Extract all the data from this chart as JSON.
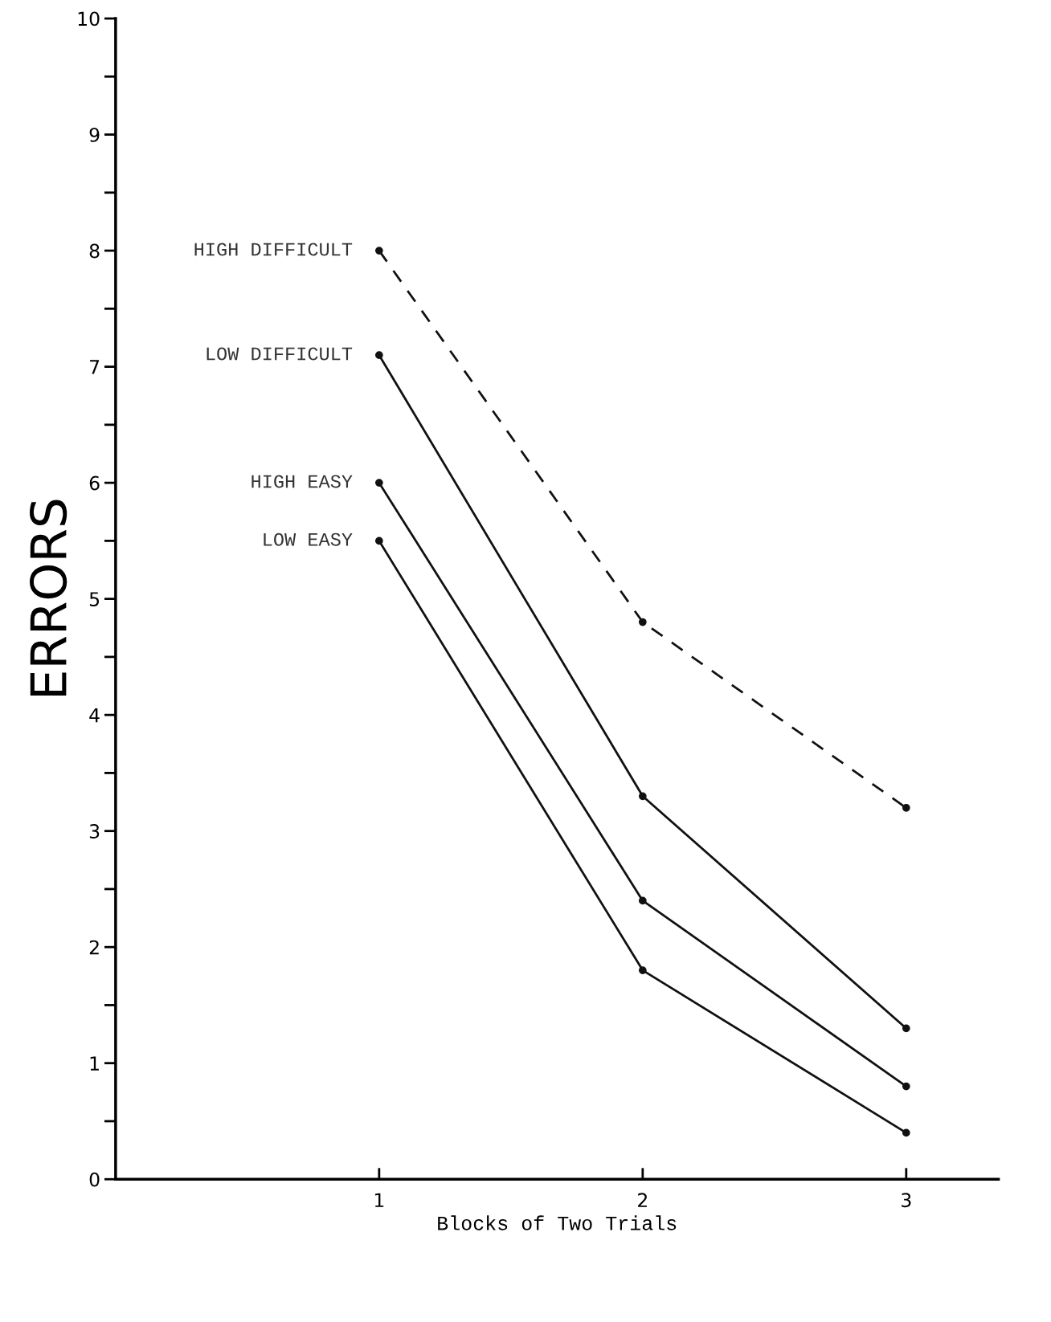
{
  "chart_data": {
    "type": "line",
    "xlabel": "Blocks of Two Trials",
    "ylabel": "ERRORS",
    "x": [
      1,
      2,
      3
    ],
    "series": [
      {
        "name": "HIGH DIFFICULT",
        "color": "#111111",
        "values": [
          8.0,
          4.8,
          3.2
        ],
        "line_style": "dashed"
      },
      {
        "name": "LOW DIFFICULT",
        "color": "#111111",
        "values": [
          7.1,
          3.3,
          1.3
        ],
        "line_style": "solid"
      },
      {
        "name": "HIGH EASY",
        "color": "#111111",
        "values": [
          6.0,
          2.4,
          0.8
        ],
        "line_style": "solid"
      },
      {
        "name": "LOW EASY",
        "color": "#111111",
        "values": [
          5.5,
          1.8,
          0.4
        ],
        "line_style": "solid"
      }
    ],
    "xlim": [
      0,
      3.35
    ],
    "xticks": [
      1,
      2,
      3
    ],
    "ylim": [
      0,
      10
    ],
    "yticks": [
      0,
      {
        "value": 0.5,
        "label": null
      },
      1,
      {
        "value": 1.5,
        "label": null
      },
      2,
      {
        "value": 2.5,
        "label": null
      },
      3,
      {
        "value": 3.5,
        "label": null
      },
      4,
      {
        "value": 4.5,
        "label": null
      },
      5,
      {
        "value": 5.5,
        "label": null
      },
      6,
      {
        "value": 6.5,
        "label": null
      },
      7,
      {
        "value": 7.5,
        "label": null
      },
      8,
      {
        "value": 8.5,
        "label": null
      },
      9,
      {
        "value": 9.5,
        "label": null
      },
      10
    ],
    "marker": "circle",
    "grid": false,
    "legend": false
  }
}
